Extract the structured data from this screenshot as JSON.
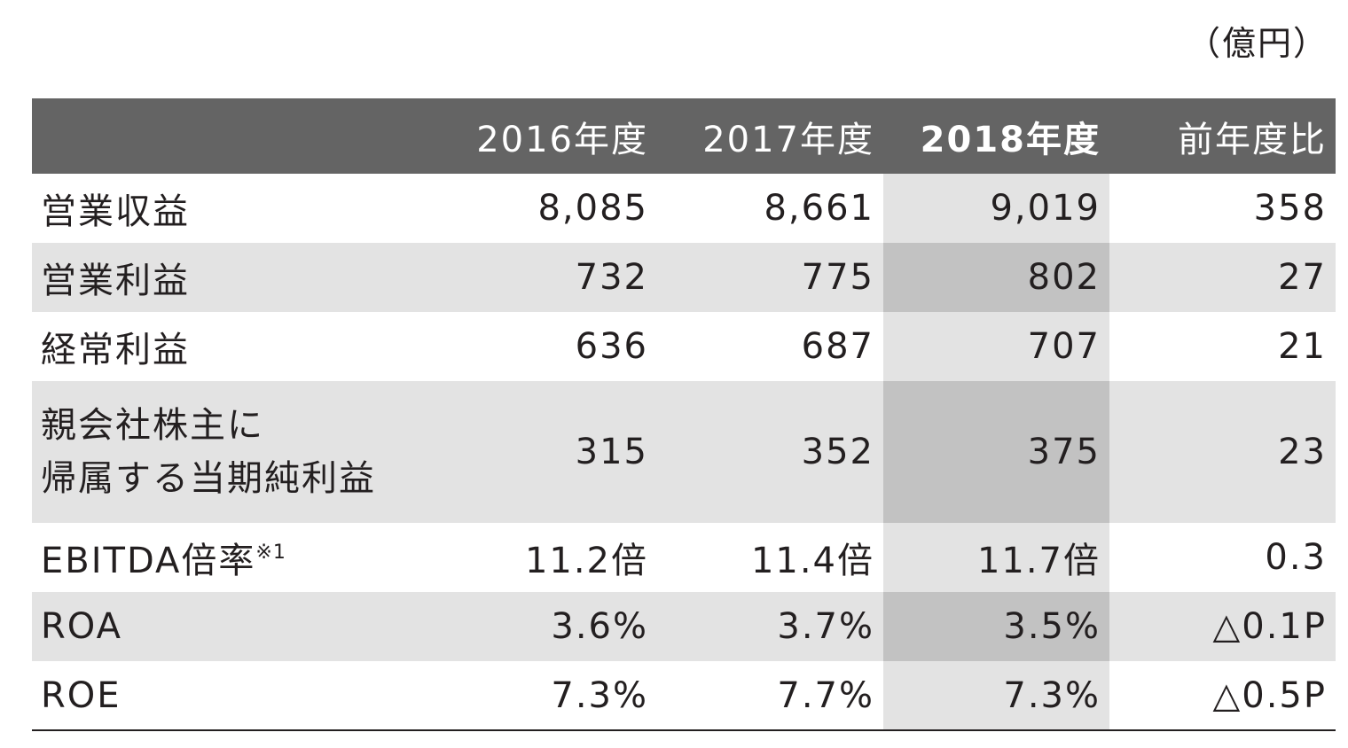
{
  "unit_label": "（億円）",
  "header": {
    "blank": "",
    "col_2016": "2016年度",
    "col_2017": "2017年度",
    "col_2018": "2018年度",
    "col_diff": "前年度比"
  },
  "rows": [
    {
      "label": "営業収益",
      "v2016": "8,085",
      "v2017": "8,661",
      "v2018": "9,019",
      "diff": "358"
    },
    {
      "label": "営業利益",
      "v2016": "732",
      "v2017": "775",
      "v2018": "802",
      "diff": "27"
    },
    {
      "label": "経常利益",
      "v2016": "636",
      "v2017": "687",
      "v2018": "707",
      "diff": "21"
    },
    {
      "label_line1": "親会社株主に",
      "label_line2": "帰属する当期純利益",
      "v2016": "315",
      "v2017": "352",
      "v2018": "375",
      "diff": "23"
    },
    {
      "label": "EBITDA倍率",
      "note": "※1",
      "v2016": "11.2倍",
      "v2017": "11.4倍",
      "v2018": "11.7倍",
      "diff": "0.3"
    },
    {
      "label": "ROA",
      "v2016": "3.6%",
      "v2017": "3.7%",
      "v2018": "3.5%",
      "diff": "△0.1P"
    },
    {
      "label": "ROE",
      "v2016": "7.3%",
      "v2017": "7.7%",
      "v2018": "7.3%",
      "diff": "△0.5P"
    }
  ],
  "colors": {
    "header_bg": "#646464",
    "row_alt_bg": "#e3e3e3",
    "highlight_bg": "#c2c2c2",
    "text": "#231f20"
  }
}
